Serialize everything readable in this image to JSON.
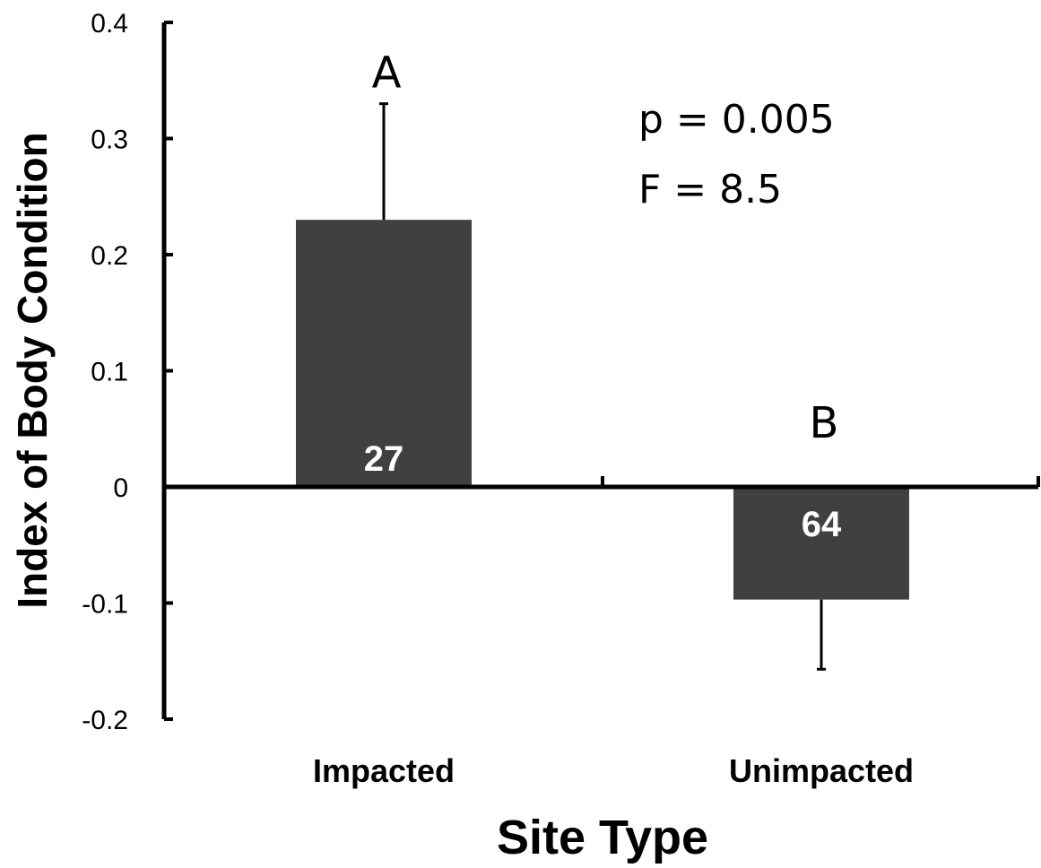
{
  "chart_data": {
    "type": "bar",
    "title": "",
    "xlabel": "Site Type",
    "ylabel": "Index of Body Condition",
    "categories": [
      "Impacted",
      "Unimpacted"
    ],
    "values": [
      0.23,
      -0.097
    ],
    "error_plus": [
      0.1,
      0
    ],
    "error_minus": [
      0,
      0.06
    ],
    "bar_labels": [
      "27",
      "64"
    ],
    "group_letters": [
      "A",
      "B"
    ],
    "annotations": [
      "p = 0.005",
      "F = 8.5"
    ],
    "ylim": [
      -0.2,
      0.4
    ],
    "yticks": [
      -0.2,
      -0.1,
      0,
      0.1,
      0.2,
      0.3,
      0.4
    ],
    "ytick_labels": [
      "-0.2",
      "-0.1",
      "0",
      "0.1",
      "0.2",
      "0.3",
      "0.4"
    ],
    "grid": false,
    "bar_color": "#404040"
  }
}
